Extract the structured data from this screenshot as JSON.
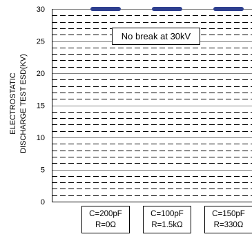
{
  "chart_data": {
    "type": "scatter",
    "ylabel_lines": [
      "ELECTROSTATIC",
      "DISCHARGE TEST ESD(KV)"
    ],
    "ylim": [
      0,
      30
    ],
    "yticks": [
      0,
      5,
      10,
      15,
      20,
      25,
      30
    ],
    "minor_step": 1,
    "grid": true,
    "annotation": "No break at 30kV",
    "categories": [
      {
        "line1": "C=200pF",
        "line2": "R=0Ω"
      },
      {
        "line1": "C=100pF",
        "line2": "R=1.5kΩ"
      },
      {
        "line1": "C=150pF",
        "line2": "R=330Ω"
      }
    ],
    "values": [
      30,
      30,
      30
    ],
    "marker_color": "#2e3f8f",
    "grid_major_color": "#808080",
    "grid_minor_color": "#000000"
  }
}
